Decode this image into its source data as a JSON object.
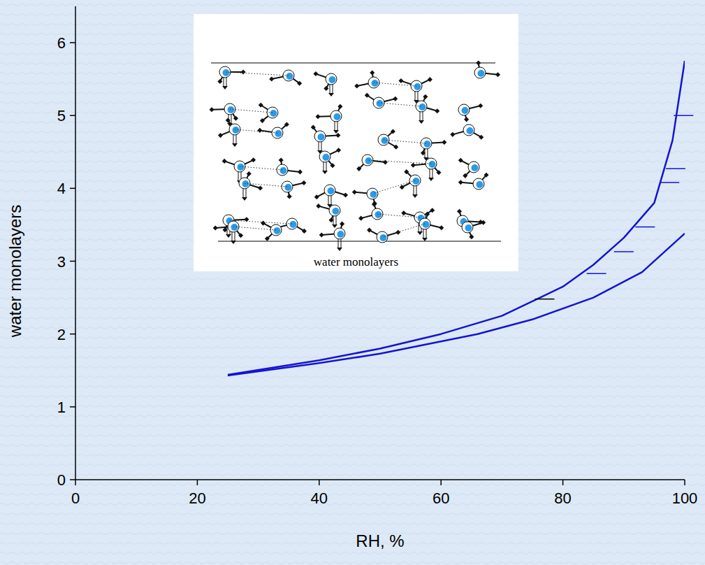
{
  "chart_data": {
    "type": "line",
    "x_label": "RH, %",
    "y_label": "water monolayers",
    "xlim": [
      0,
      100
    ],
    "xticks": [
      0,
      20,
      40,
      60,
      80,
      100
    ],
    "ylim": [
      0,
      6.5
    ],
    "yticks": [
      0,
      1,
      2,
      3,
      4,
      5,
      6
    ],
    "grid": false,
    "inset": {
      "caption": "water monolayers"
    },
    "series": [
      {
        "type": "line",
        "color": "#1414d2",
        "x": [
          25,
          40,
          50,
          60,
          70,
          80,
          85,
          90,
          95,
          98,
          100
        ],
        "values": [
          1.44,
          1.64,
          1.8,
          2.0,
          2.25,
          2.65,
          2.95,
          3.32,
          3.8,
          4.66,
          5.75
        ]
      },
      {
        "type": "line",
        "color": "#1414d2",
        "x": [
          25,
          40,
          50,
          66,
          75,
          85,
          93,
          100
        ],
        "values": [
          1.43,
          1.6,
          1.73,
          2.0,
          2.2,
          2.5,
          2.85,
          3.38
        ]
      },
      {
        "type": "scatter",
        "marker": "dash",
        "color": "#1414d2",
        "colors": [
          "#000000",
          "#1414d2",
          "#1414d2",
          "#1414d2",
          "#1414d2",
          "#1414d2",
          "#1414d2"
        ],
        "x": [
          77,
          85.5,
          90,
          93.5,
          97.5,
          98.5,
          99.8
        ],
        "values": [
          2.48,
          2.83,
          3.13,
          3.47,
          4.08,
          4.27,
          5.0
        ]
      }
    ]
  }
}
